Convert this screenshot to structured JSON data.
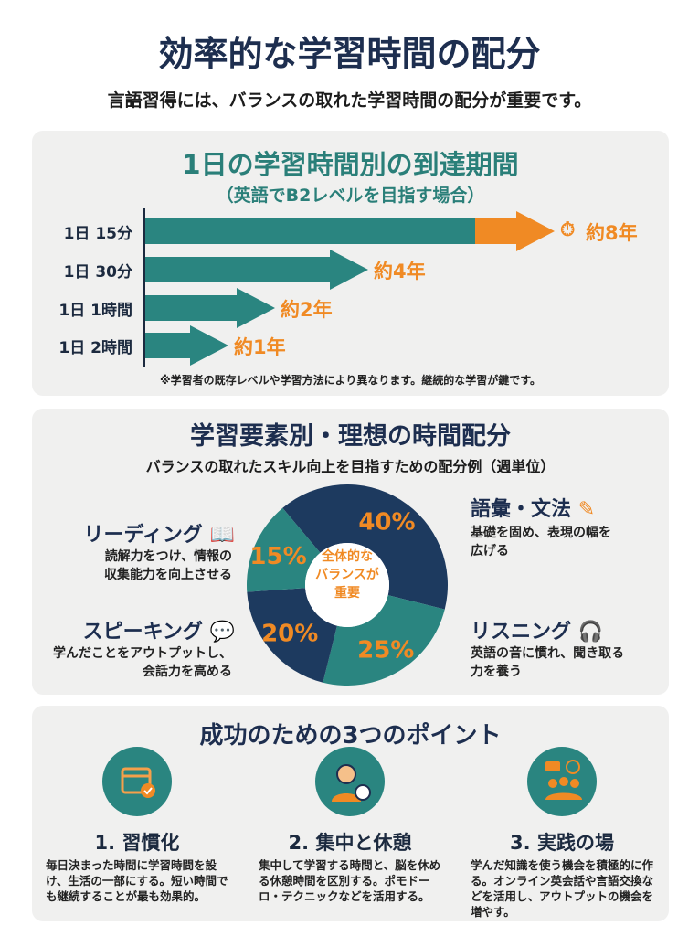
{
  "title": "効率的な学習時間の配分",
  "subtitle": "言語習得には、バランスの取れた学習時間の配分が重要です。",
  "section1": {
    "title": "1日の学習時間別の到達期間",
    "subtitle": "（英語でB2レベルを目指す場合）",
    "note": "※学習者の既存レベルや学習方法により異なります。継続的な学習が鍵です。",
    "icon": "stopwatch-icon"
  },
  "section2": {
    "title": "学習要素別・理想の時間配分",
    "subtitle": "バランスの取れたスキル向上を目指すための配分例（週単位）",
    "center_text": [
      "全体的な",
      "バランスが",
      "重要"
    ],
    "skills": [
      {
        "name": "語彙・文法",
        "desc": [
          "基礎を固め、表現の幅を",
          "広げる"
        ],
        "icon": "notebook-pen-icon"
      },
      {
        "name": "リスニング",
        "desc": [
          "英語の音に慣れ、聞き取る",
          "力を養う"
        ],
        "icon": "headphones-ear-icon"
      },
      {
        "name": "スピーキング",
        "desc": [
          "学んだことをアウトプットし、",
          "会話力を高める"
        ],
        "icon": "speech-bubble-icon"
      },
      {
        "name": "リーディング",
        "desc": [
          "読解力をつけ、情報の",
          "収集能力を向上させる"
        ],
        "icon": "open-book-icon"
      }
    ]
  },
  "section3": {
    "title": "成功のための3つのポイント",
    "points": [
      {
        "title": "1. 習慣化",
        "desc": "毎日決まった時間に学習時間を設け、生活の一部にする。短い時間でも継続することが最も効果的。",
        "icon": "calendar-check-icon"
      },
      {
        "title": "2. 集中と休憩",
        "desc": "集中して学習する時間と、脳を休める休憩時間を区別する。ポモドーロ・テクニックなどを活用する。",
        "icon": "person-timer-icon"
      },
      {
        "title": "3. 実践の場",
        "desc": "学んだ知識を使う機会を積極的に作る。オンライン英会話や言語交換などを活用し、アウトプットの機会を増やす。",
        "icon": "group-chat-icon"
      }
    ]
  },
  "colors": {
    "navy": "#1d3a5f",
    "teal": "#2a8580",
    "orange": "#f08a24",
    "panel": "#f0f0ef"
  },
  "chart_data": [
    {
      "type": "bar",
      "orientation": "horizontal",
      "title": "1日の学習時間別の到達期間",
      "categories": [
        "1日 15分",
        "1日 30分",
        "1日 1時間",
        "1日 2時間"
      ],
      "values": [
        8,
        4,
        2,
        1
      ],
      "value_labels": [
        "約8年",
        "約4年",
        "約2年",
        "約1年"
      ],
      "unit": "年"
    },
    {
      "type": "pie",
      "donut": true,
      "title": "学習要素別・理想の時間配分",
      "categories": [
        "語彙・文法",
        "リスニング",
        "スピーキング",
        "リーディング"
      ],
      "values": [
        40,
        25,
        20,
        15
      ],
      "labels": [
        "40%",
        "25%",
        "20%",
        "15%"
      ],
      "colors": [
        "#1d3a5f",
        "#2a8580",
        "#1d3a5f",
        "#2a8580"
      ]
    }
  ]
}
